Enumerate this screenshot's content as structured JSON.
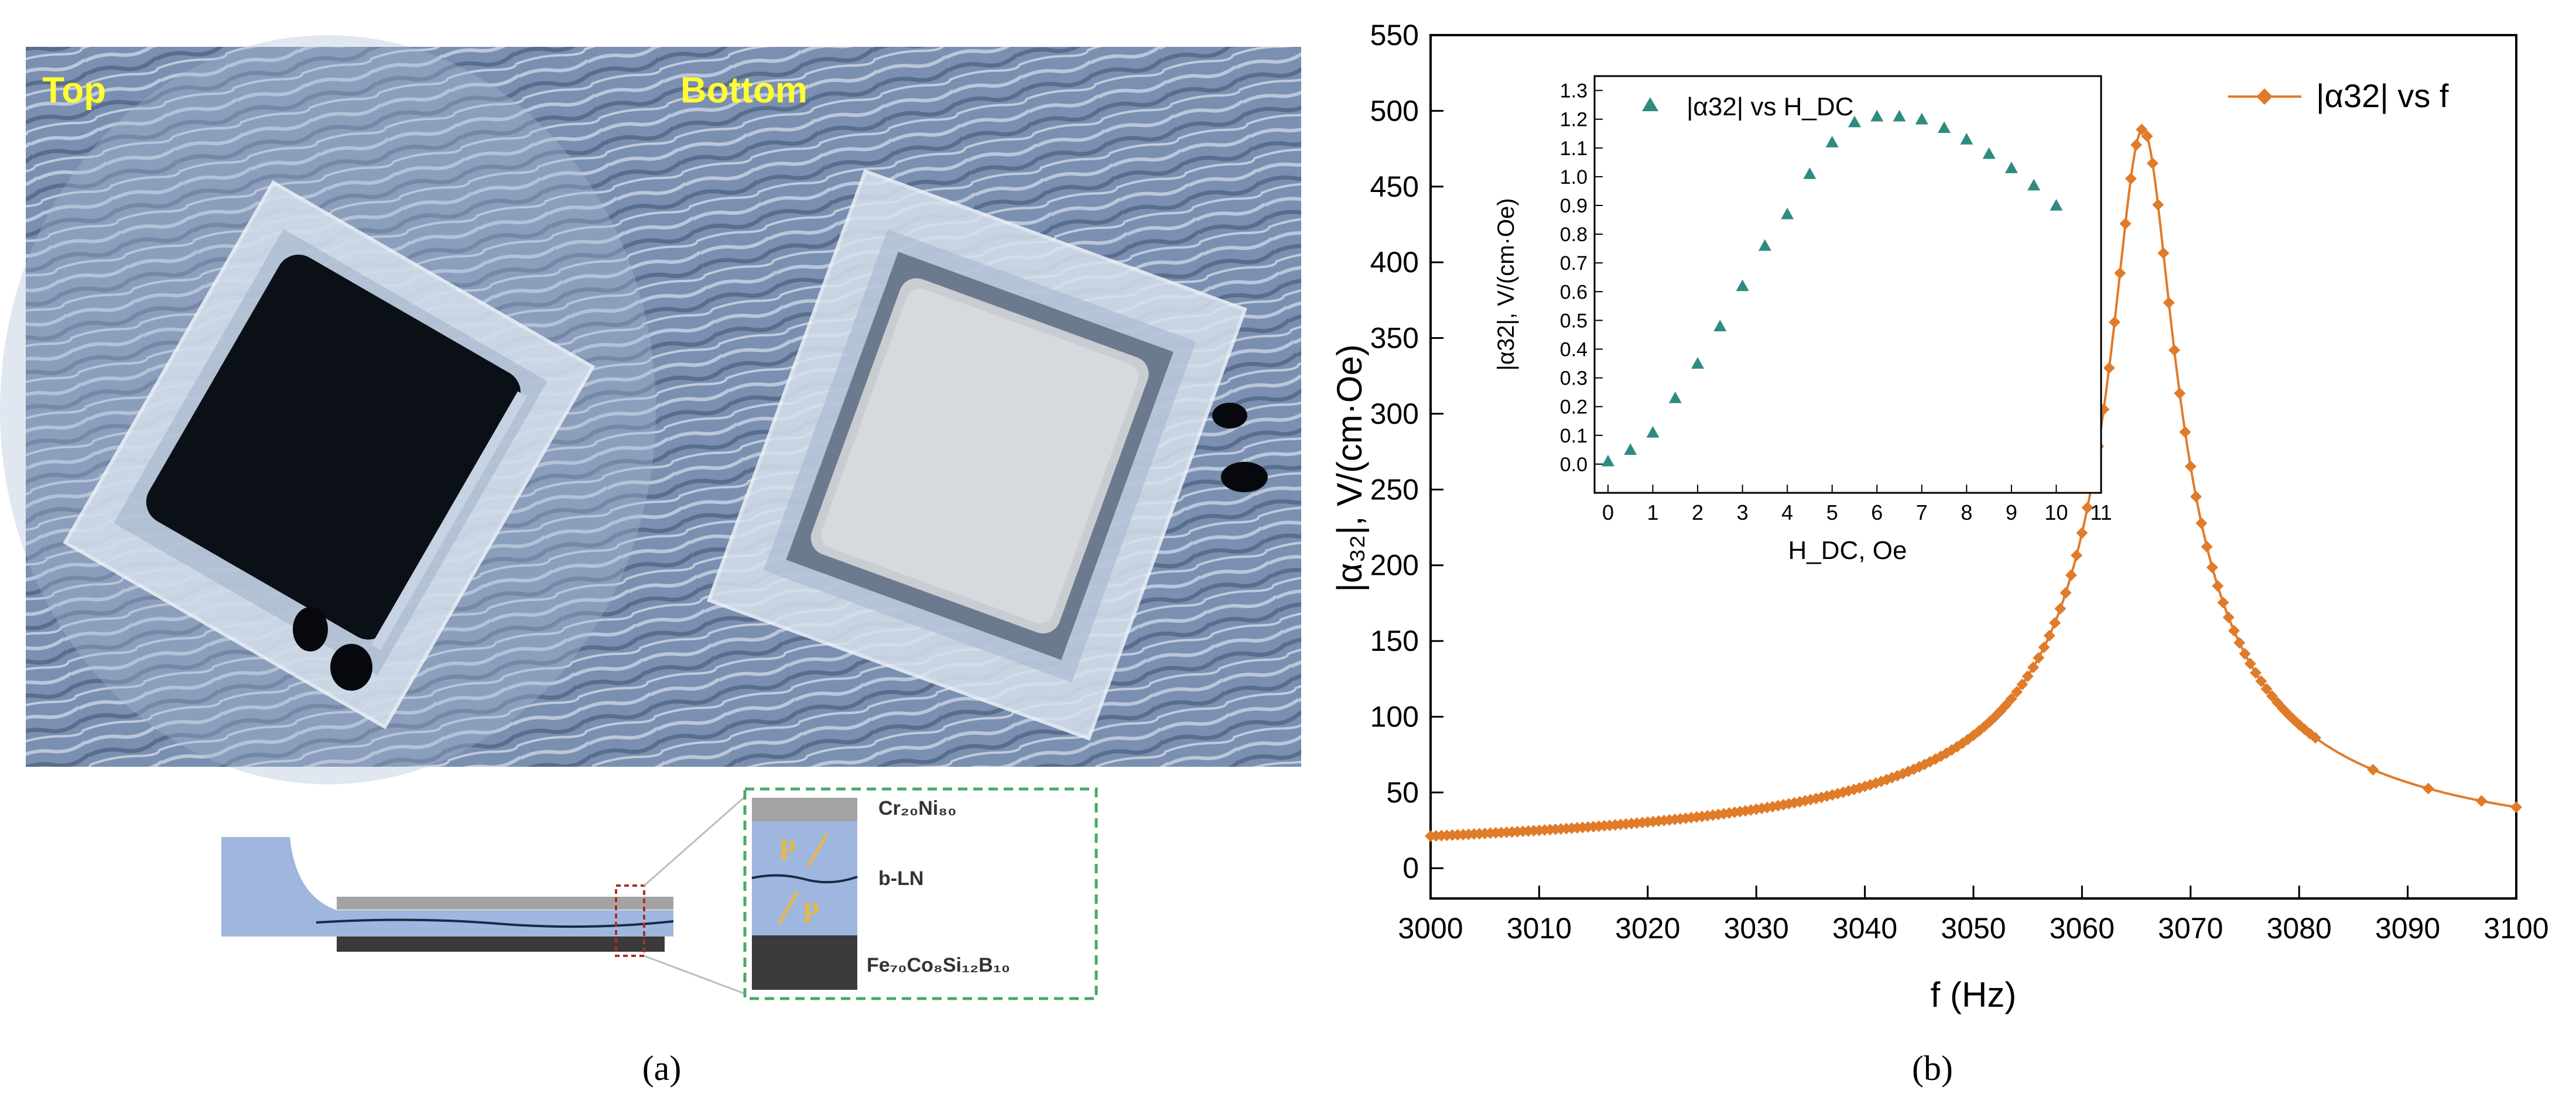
{
  "panel_a": {
    "photo_left_label": "Top",
    "photo_right_label": "Bottom",
    "layer_top": "Cr₂₀Ni₈₀",
    "layer_mid": "b-LN",
    "layer_bottom": "Fe₇₀Co₈Si₁₂B₁₀",
    "polarization_symbol": "P",
    "caption": "(a)",
    "colors": {
      "label_yellow": "#ffff33",
      "substrate_blue": "#9fb7de",
      "frame_green": "#4aa86b",
      "electrode_gray": "#a3a3a3",
      "amorphous_dark": "#3a3a3a"
    }
  },
  "panel_b": {
    "caption": "(b)",
    "colors": {
      "main_series": "#e07b2a",
      "inset_series": "#2e8b80"
    }
  },
  "chart_data": [
    {
      "type": "line",
      "title": "",
      "xlabel": "f (Hz)",
      "ylabel": "|α₃₂|, V/(cm·Oe)",
      "xlim": [
        3000,
        3100
      ],
      "ylim": [
        -20,
        550
      ],
      "xticks": [
        3000,
        3010,
        3020,
        3030,
        3040,
        3050,
        3060,
        3070,
        3080,
        3090,
        3100
      ],
      "yticks": [
        0,
        50,
        100,
        150,
        200,
        250,
        300,
        350,
        400,
        450,
        500,
        550
      ],
      "legend": "top-right",
      "series": [
        {
          "name": "|α32| vs f",
          "marker": "diamond",
          "color": "#e07b2a",
          "f0": 3065.6,
          "peak": 488,
          "gamma": 2.85,
          "x": [
            3000,
            3005,
            3010,
            3015,
            3020,
            3025,
            3030,
            3035,
            3040,
            3045,
            3050,
            3055,
            3058,
            3060,
            3062,
            3063,
            3064,
            3065,
            3065.6,
            3066,
            3067,
            3068,
            3069,
            3070,
            3072,
            3075,
            3078,
            3082,
            3087,
            3092,
            3097,
            3100
          ],
          "values": [
            13.4,
            14.6,
            16.1,
            17.9,
            20.1,
            23,
            26.9,
            32.3,
            40.3,
            53.5,
            77.9,
            133,
            200,
            270,
            359,
            403,
            444,
            481,
            488,
            484,
            452,
            402,
            345,
            290,
            205,
            128,
            88,
            56,
            38,
            29,
            24,
            22
          ]
        }
      ]
    },
    {
      "type": "scatter",
      "title": "",
      "xlabel": "H_DC, Oe",
      "ylabel": "|α32|, V/(cm·Oe)",
      "xlim": [
        -0.3,
        11
      ],
      "ylim": [
        -0.1,
        1.35
      ],
      "xticks": [
        0,
        1,
        2,
        3,
        4,
        5,
        6,
        7,
        8,
        9,
        10,
        11
      ],
      "yticks": [
        0.0,
        0.1,
        0.2,
        0.3,
        0.4,
        0.5,
        0.6,
        0.7,
        0.8,
        0.9,
        1.0,
        1.1,
        1.2,
        1.3
      ],
      "legend": "top-left",
      "series": [
        {
          "name": "|α32| vs H_DC",
          "marker": "triangle",
          "color": "#2e8b80",
          "x": [
            0,
            0.5,
            1,
            1.5,
            2,
            2.5,
            3,
            3.5,
            4,
            4.5,
            5,
            5.5,
            6,
            6.5,
            7,
            7.5,
            8,
            8.5,
            9,
            9.5,
            10
          ],
          "values": [
            0.01,
            0.05,
            0.11,
            0.23,
            0.35,
            0.48,
            0.62,
            0.76,
            0.87,
            1.01,
            1.12,
            1.19,
            1.21,
            1.21,
            1.2,
            1.17,
            1.13,
            1.08,
            1.03,
            0.97,
            0.9
          ]
        }
      ]
    }
  ]
}
